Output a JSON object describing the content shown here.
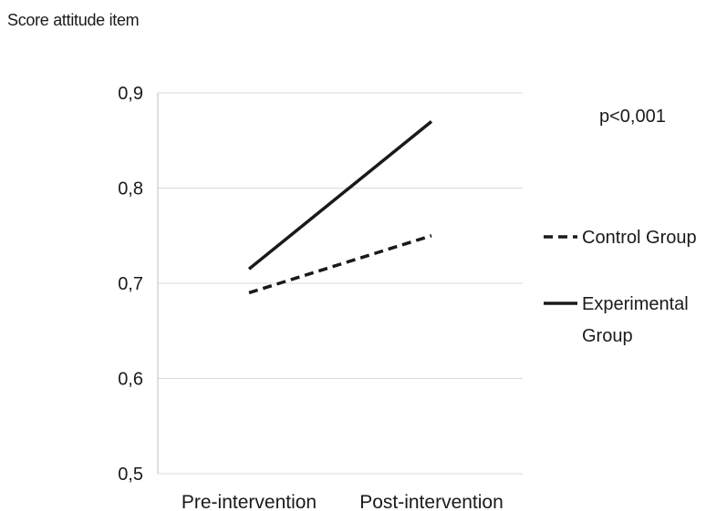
{
  "chart_data": {
    "type": "line",
    "ylabel": "Score attitude item",
    "xlabel": "",
    "categories": [
      "Pre-intervention",
      "Post-intervention"
    ],
    "ylim": [
      0.5,
      0.9
    ],
    "yticks": [
      0.5,
      0.6,
      0.7,
      0.8,
      0.9
    ],
    "ytick_labels": [
      "0,5",
      "0,6",
      "0,7",
      "0,8",
      "0,9"
    ],
    "grid": true,
    "legend_position": "right",
    "annotation": "p<0,001",
    "series": [
      {
        "name": "Control Group",
        "values": [
          0.69,
          0.75
        ],
        "style": "dashed",
        "color": "#1a1a1a"
      },
      {
        "name": "Experimental Group",
        "values": [
          0.715,
          0.87
        ],
        "style": "solid",
        "color": "#1a1a1a"
      }
    ]
  }
}
